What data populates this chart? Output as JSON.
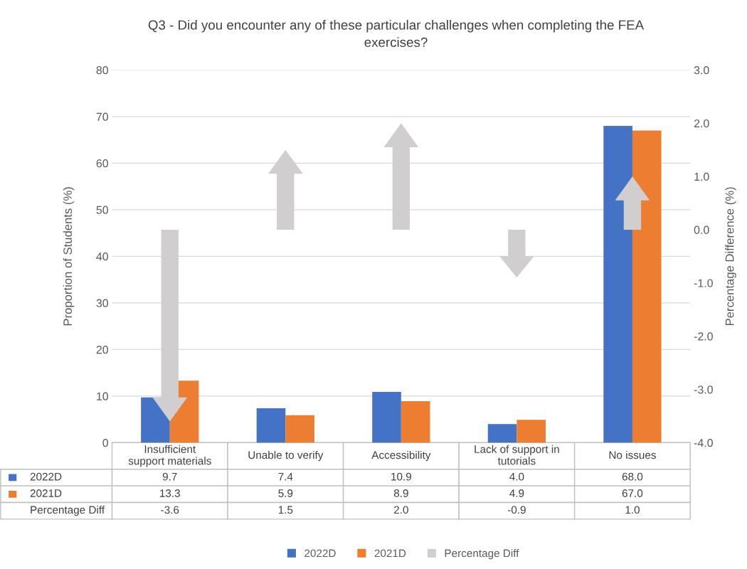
{
  "chart_data": {
    "type": "bar",
    "title": "Q3 - Did you encounter any of these particular challenges when completing the FEA exercises?",
    "categories": [
      "Insufficient support materials",
      "Unable to verify",
      "Accessibility",
      "Lack of support in tutorials",
      "No issues"
    ],
    "series": [
      {
        "name": "2022D",
        "color": "#4472c4",
        "values": [
          9.7,
          7.4,
          10.9,
          4.0,
          68.0
        ],
        "value_labels": [
          "9.7",
          "7.4",
          "10.9",
          "4.0",
          "68.0"
        ]
      },
      {
        "name": "2021D",
        "color": "#ed7d31",
        "values": [
          13.3,
          5.9,
          8.9,
          4.9,
          67.0
        ],
        "value_labels": [
          "13.3",
          "5.9",
          "8.9",
          "4.9",
          "67.0"
        ]
      },
      {
        "name": "Percentage Diff",
        "axis": "y2",
        "color": "#d0cece",
        "values": [
          -3.6,
          1.5,
          2.0,
          -0.9,
          1.0
        ],
        "value_labels": [
          "-3.6",
          "1.5",
          "2.0",
          "-0.9",
          "1.0"
        ]
      }
    ],
    "ylabel": "Proportion of Students (%)",
    "y2label": "Percentage Difference (%)",
    "ylim": [
      0,
      80
    ],
    "yticks": [
      0,
      10,
      20,
      30,
      40,
      50,
      60,
      70,
      80
    ],
    "y2lim": [
      -4,
      3
    ],
    "y2ticks": [
      {
        "value": -4,
        "label": "-4.0"
      },
      {
        "value": -3,
        "label": "-3.0"
      },
      {
        "value": -2,
        "label": "-2.0"
      },
      {
        "value": -1,
        "label": "-1.0"
      },
      {
        "value": 0,
        "label": "0.0"
      },
      {
        "value": 1,
        "label": "1.0"
      },
      {
        "value": 2,
        "label": "2.0"
      },
      {
        "value": 3,
        "label": "3.0"
      }
    ],
    "grid": "y",
    "legend": "bottom"
  }
}
